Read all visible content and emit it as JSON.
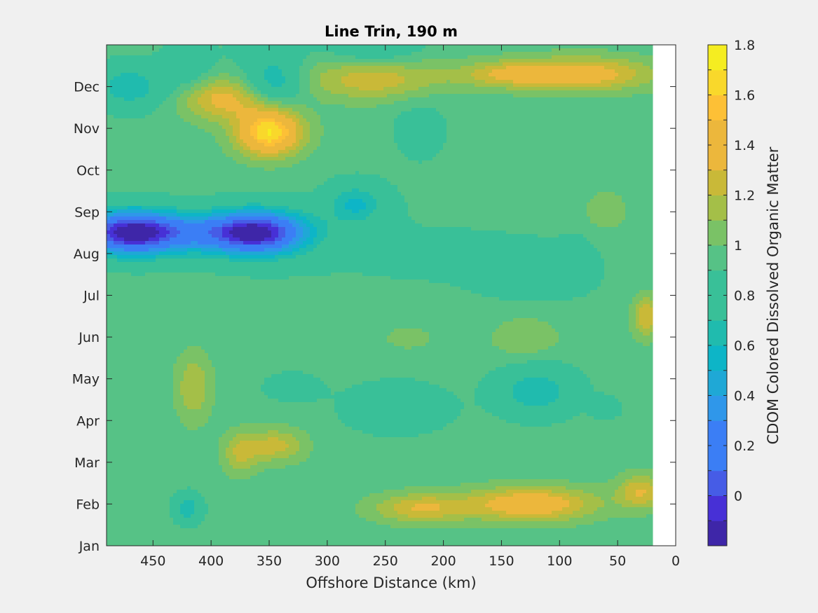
{
  "chart_data": {
    "type": "heatmap",
    "subtype": "filled-contour",
    "title": "Line Trin, 190 m",
    "xlabel": "Offshore Distance (km)",
    "colorbar_label": "CDOM Colored Dissolved Organic Matter",
    "x_direction": "reverse",
    "xlim": [
      0,
      490
    ],
    "xticks": [
      450,
      400,
      350,
      300,
      250,
      200,
      150,
      100,
      50,
      0
    ],
    "y_months": [
      "Jan",
      "Feb",
      "Mar",
      "Apr",
      "May",
      "Jun",
      "Jul",
      "Aug",
      "Sep",
      "Oct",
      "Nov",
      "Dec"
    ],
    "data_x_max": 490,
    "data_x_min": 20,
    "clim": [
      -0.2,
      1.8
    ],
    "colorbar_ticks": [
      0,
      0.2,
      0.4,
      0.6,
      0.8,
      1,
      1.2,
      1.4,
      1.6,
      1.8
    ],
    "contour_step": 0.1,
    "grid": false,
    "colormap": [
      "#3e26a8",
      "#4730d6",
      "#465ce6",
      "#3b7ef5",
      "#2f97ea",
      "#1fa8d6",
      "#0db5c7",
      "#20bbae",
      "#39c098",
      "#56c286",
      "#7ac266",
      "#a4bf48",
      "#c9b938",
      "#ecb73c",
      "#fdc036",
      "#f9d82b",
      "#f5ed21"
    ],
    "field_blobs": [
      {
        "x": 470,
        "y": 7.5,
        "rx": 45,
        "ry": 0.55,
        "a": -0.95
      },
      {
        "x": 360,
        "y": 7.5,
        "rx": 45,
        "ry": 0.55,
        "a": -0.95
      },
      {
        "x": 420,
        "y": 7.5,
        "rx": 75,
        "ry": 0.5,
        "a": -0.35
      },
      {
        "x": 275,
        "y": 8.2,
        "rx": 25,
        "ry": 0.5,
        "a": -0.35
      },
      {
        "x": 350,
        "y": 9.9,
        "rx": 28,
        "ry": 0.55,
        "a": 0.75
      },
      {
        "x": 390,
        "y": 10.7,
        "rx": 35,
        "ry": 0.5,
        "a": 0.4
      },
      {
        "x": 470,
        "y": 11.0,
        "rx": 30,
        "ry": 0.55,
        "a": -0.35
      },
      {
        "x": 345,
        "y": 11.1,
        "rx": 25,
        "ry": 0.5,
        "a": -0.35
      },
      {
        "x": 420,
        "y": 11.5,
        "rx": 22,
        "ry": 0.6,
        "a": -0.2
      },
      {
        "x": 260,
        "y": 11.2,
        "rx": 60,
        "ry": 0.5,
        "a": 0.35
      },
      {
        "x": 80,
        "y": 11.3,
        "rx": 60,
        "ry": 0.4,
        "a": 0.45
      },
      {
        "x": 145,
        "y": 11.3,
        "rx": 40,
        "ry": 0.3,
        "a": 0.3
      },
      {
        "x": 125,
        "y": 1.0,
        "rx": 55,
        "ry": 0.4,
        "a": 0.5
      },
      {
        "x": 220,
        "y": 0.9,
        "rx": 40,
        "ry": 0.35,
        "a": 0.35
      },
      {
        "x": 420,
        "y": 0.9,
        "rx": 12,
        "ry": 0.35,
        "a": -0.35
      },
      {
        "x": 30,
        "y": 1.3,
        "rx": 20,
        "ry": 0.4,
        "a": 0.35
      },
      {
        "x": 345,
        "y": 2.4,
        "rx": 25,
        "ry": 0.4,
        "a": 0.3
      },
      {
        "x": 375,
        "y": 2.2,
        "rx": 15,
        "ry": 0.5,
        "a": 0.25
      },
      {
        "x": 415,
        "y": 3.8,
        "rx": 15,
        "ry": 0.8,
        "a": 0.25
      },
      {
        "x": 330,
        "y": 3.8,
        "rx": 25,
        "ry": 0.35,
        "a": -0.15
      },
      {
        "x": 240,
        "y": 3.3,
        "rx": 45,
        "ry": 0.6,
        "a": -0.2
      },
      {
        "x": 120,
        "y": 3.7,
        "rx": 35,
        "ry": 0.6,
        "a": -0.35
      },
      {
        "x": 60,
        "y": 3.3,
        "rx": 12,
        "ry": 0.25,
        "a": -0.2
      },
      {
        "x": 120,
        "y": 6.5,
        "rx": 40,
        "ry": 0.5,
        "a": -0.15
      },
      {
        "x": 85,
        "y": 6.8,
        "rx": 12,
        "ry": 0.5,
        "a": -0.15
      },
      {
        "x": 130,
        "y": 5.0,
        "rx": 30,
        "ry": 0.5,
        "a": 0.15
      },
      {
        "x": 230,
        "y": 5.0,
        "rx": 25,
        "ry": 0.35,
        "a": 0.1
      },
      {
        "x": 60,
        "y": 8.0,
        "rx": 20,
        "ry": 0.5,
        "a": 0.15
      },
      {
        "x": 25,
        "y": 5.5,
        "rx": 12,
        "ry": 0.5,
        "a": 0.35
      },
      {
        "x": 220,
        "y": 10.0,
        "rx": 25,
        "ry": 0.8,
        "a": -0.12
      },
      {
        "x": 260,
        "y": 12.0,
        "rx": 40,
        "ry": 0.6,
        "a": -0.25
      },
      {
        "x": 350,
        "y": 12.0,
        "rx": 30,
        "ry": 0.6,
        "a": -0.2
      },
      {
        "x": 210,
        "y": 7.0,
        "rx": 200,
        "ry": 1.5,
        "a": -0.06
      }
    ]
  }
}
